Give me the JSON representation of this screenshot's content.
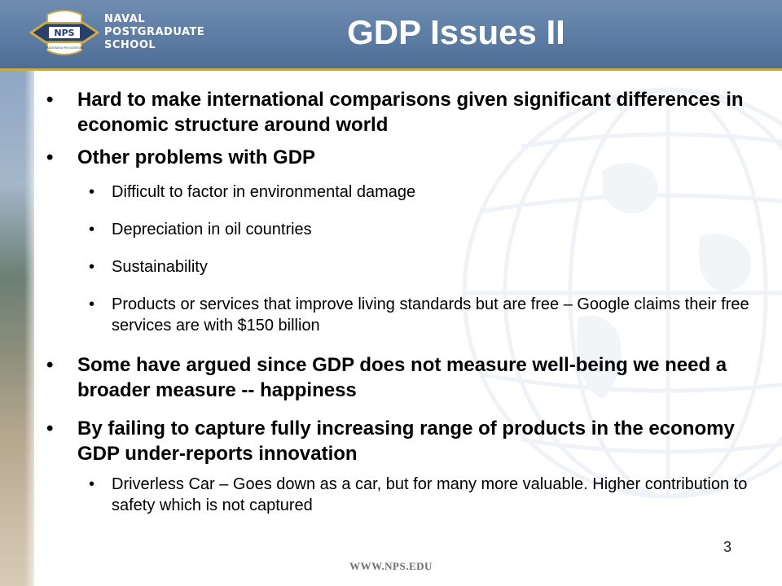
{
  "header": {
    "title": "GDP Issues II",
    "logo": {
      "icon": "nps-seal-icon",
      "badge_text": "NPS",
      "motto": "PRAESTANTIA PER SCIENTIAM",
      "lines": [
        "NAVAL",
        "POSTGRADUATE",
        "SCHOOL"
      ]
    }
  },
  "content": {
    "bullets": [
      {
        "level": 1,
        "text": "Hard to make international comparisons given significant differences in economic structure around world"
      },
      {
        "level": 1,
        "text": "Other problems with GDP"
      },
      {
        "level": 2,
        "text": "Difficult to factor in environmental damage"
      },
      {
        "level": 2,
        "text": "Depreciation in oil countries"
      },
      {
        "level": 2,
        "text": "Sustainability"
      },
      {
        "level": 2,
        "text": "Products or services that improve living standards but are free – Google claims their free services are with $150 billion"
      },
      {
        "level": 1,
        "text": "Some have argued since GDP does not measure well-being we need a broader measure -- happiness"
      },
      {
        "level": 1,
        "text": "By failing to capture fully increasing range of products in the economy GDP under-reports innovation"
      },
      {
        "level": 2,
        "text": "Driverless Car – Goes down as a car, but for many more valuable.  Higher contribution to safety which is not captured"
      }
    ]
  },
  "footer": {
    "page_number": "3",
    "url": "WWW.NPS.EDU"
  },
  "colors": {
    "header_blue": "#5d7ca3",
    "gold_accent": "#c9a94a",
    "text": "#000000"
  }
}
